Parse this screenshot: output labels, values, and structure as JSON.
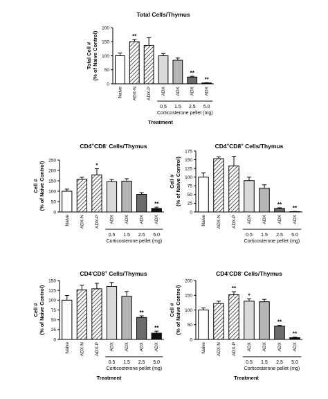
{
  "chart_data": [
    {
      "type": "bar",
      "title": "Total Cells/Thymus",
      "ylabel_lines": [
        "Total Cell #",
        "(% of Naive Control)"
      ],
      "ylim": [
        0,
        200
      ],
      "yticks": [
        "0",
        "50",
        "100",
        "150",
        "200"
      ],
      "categories": [
        "Naive",
        "ADX-N",
        "ADX-P",
        "ADX",
        "ADX",
        "ADX",
        "ADX"
      ],
      "values": [
        100,
        150,
        137,
        100,
        84,
        24,
        3
      ],
      "errors": [
        10,
        8,
        27,
        8,
        8,
        3,
        1
      ],
      "significance": [
        "",
        "**",
        "",
        "",
        "",
        "**",
        "**"
      ],
      "doses": [
        "0.5",
        "1.5",
        "2.5",
        "5.0"
      ],
      "dose_label": "Corticosterone pellet (mg)",
      "xlabel": "Treatment"
    },
    {
      "type": "bar",
      "title_parts": [
        "CD4",
        "+",
        "CD8",
        "-",
        " Cells/Thymus"
      ],
      "ylabel_lines": [
        "Cell #",
        "(% of Naive Control)"
      ],
      "ylim": [
        0,
        250
      ],
      "yticks": [
        "0",
        "50",
        "100",
        "150",
        "200",
        "250"
      ],
      "categories": [
        "Naive",
        "ADX-N",
        "ADX-P",
        "ADX",
        "ADX",
        "ADX",
        "ADX"
      ],
      "values": [
        100,
        157,
        178,
        146,
        148,
        85,
        17
      ],
      "errors": [
        10,
        10,
        30,
        10,
        12,
        8,
        6
      ],
      "significance": [
        "",
        "",
        "*",
        "",
        "",
        "",
        "**"
      ],
      "doses": [
        "0.5",
        "1.5",
        "2.5",
        "5.0"
      ],
      "dose_label": "Corticosterone pellet (mg)",
      "xlabel": ""
    },
    {
      "type": "bar",
      "title_parts": [
        "CD4",
        "+",
        "CD8",
        "+",
        " Cells/Thymus"
      ],
      "ylabel_lines": [
        "Cell #",
        "(% of Naive Control)"
      ],
      "ylim": [
        0,
        175
      ],
      "yticks": [
        "0",
        "25",
        "50",
        "75",
        "100",
        "125",
        "150",
        "175"
      ],
      "categories": [
        "Naive",
        "ADX-N",
        "ADX-P",
        "ADX",
        "ADX",
        "ADX",
        "ADX"
      ],
      "values": [
        100,
        153,
        132,
        90,
        68,
        10,
        1
      ],
      "errors": [
        12,
        5,
        28,
        10,
        10,
        2,
        0.5
      ],
      "significance": [
        "",
        "",
        "",
        "",
        "",
        "**",
        "**"
      ],
      "doses": [
        "0.5",
        "1.5",
        "2.5",
        "5.0"
      ],
      "dose_label": "Corticosterone pellet (mg)",
      "xlabel": ""
    },
    {
      "type": "bar",
      "title_parts": [
        "CD4",
        "-",
        "CD8",
        "+",
        " Cells/Thymus"
      ],
      "ylabel_lines": [
        "Cell #",
        "(% of Naive Control)"
      ],
      "ylim": [
        0,
        150
      ],
      "yticks": [
        "0",
        "25",
        "50",
        "75",
        "100",
        "125",
        "150"
      ],
      "categories": [
        "Naive",
        "ADX-N",
        "ADX-P",
        "ADX",
        "ADX",
        "ADX",
        "ADX"
      ],
      "values": [
        100,
        126,
        129,
        135,
        110,
        56,
        16
      ],
      "errors": [
        12,
        12,
        14,
        10,
        12,
        4,
        5
      ],
      "significance": [
        "",
        "",
        "",
        "",
        "",
        "**",
        "**"
      ],
      "doses": [
        "0.5",
        "1.5",
        "2.5",
        "5.0"
      ],
      "dose_label": "Corticosterone pellet (mg)",
      "xlabel": "Treatment"
    },
    {
      "type": "bar",
      "title_parts": [
        "CD4",
        "-",
        "CD8",
        "-",
        " Cells/Thymus"
      ],
      "ylabel_lines": [
        "Cell #",
        "(% of Naive Control)"
      ],
      "ylim": [
        0,
        200
      ],
      "yticks": [
        "0",
        "50",
        "100",
        "150",
        "200"
      ],
      "categories": [
        "Naive",
        "ADX-N",
        "ADX-P",
        "ADX",
        "ADX",
        "ADX",
        "ADX"
      ],
      "values": [
        100,
        122,
        152,
        130,
        128,
        45,
        6
      ],
      "errors": [
        7,
        8,
        10,
        8,
        8,
        3,
        2
      ],
      "significance": [
        "",
        "",
        "**",
        "*",
        "",
        "**",
        "**"
      ],
      "doses": [
        "0.5",
        "1.5",
        "2.5",
        "5.0"
      ],
      "dose_label": "Corticosterone pellet (mg)",
      "xlabel": "Treatment"
    }
  ],
  "colors": {
    "naive": "#ffffff",
    "hatched": "#ffffff",
    "dose_0_5": "#d9d9d9",
    "dose_1_5": "#b5b5b5",
    "dose_2_5": "#6b6b6b",
    "dose_5_0": "#111111",
    "axis": "#000000"
  }
}
